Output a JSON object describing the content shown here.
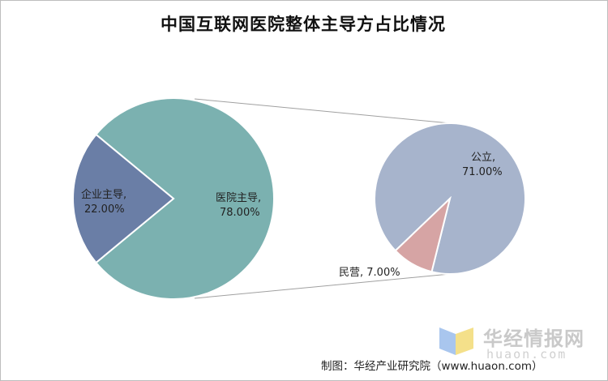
{
  "chart_data": {
    "type": "pie",
    "title": "中国互联网医院整体主导方占比情况",
    "main_pie": {
      "slices": [
        {
          "label": "医院主导",
          "value": 78.0,
          "text": "78.00%",
          "color": "#7bb1b0"
        },
        {
          "label": "企业主导",
          "value": 22.0,
          "text": "22.00%",
          "color": "#6a7ea6"
        }
      ]
    },
    "sub_pie": {
      "slices": [
        {
          "label": "公立",
          "value": 71.0,
          "text": "71.00%",
          "color": "#a7b4cc"
        },
        {
          "label": "民营",
          "value": 7.0,
          "text": "7.00%",
          "color": "#d6a4a4"
        }
      ]
    }
  },
  "footer": {
    "credit": "制图：华经产业研究院（www.huaon.com）"
  },
  "watermark": {
    "brand": "华经情报网",
    "domain": "huaon.com"
  }
}
